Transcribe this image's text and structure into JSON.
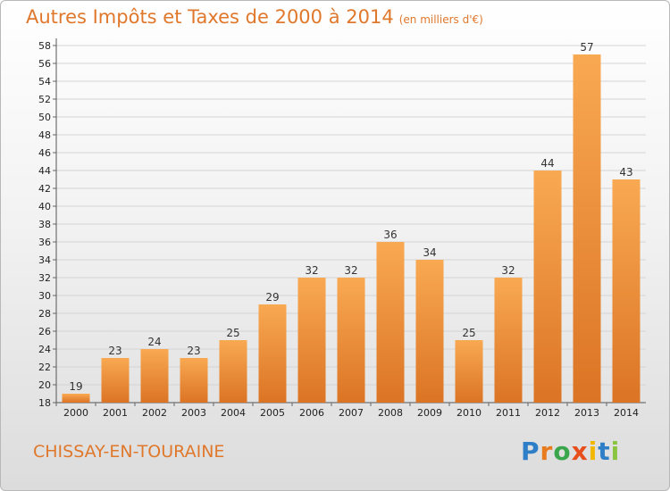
{
  "header": {
    "title": "Autres Impôts et Taxes de 2000 à 2014",
    "unit": "(en milliers d'€)"
  },
  "footer": {
    "commune": "CHISSAY-EN-TOURAINE",
    "logo": [
      "P",
      "r",
      "o",
      "x",
      "i",
      "t",
      "i"
    ]
  },
  "colors": {
    "accent": "#e0782c",
    "bar_light": "#f9a952",
    "bar_dark": "#db7424",
    "logo": [
      "#2f7fc8",
      "#e87b1e",
      "#3aa64b",
      "#e84e1b",
      "#f2b800",
      "#2f7fc8",
      "#8bc43f"
    ]
  },
  "chart_data": {
    "type": "bar",
    "title": "Autres Impôts et Taxes de 2000 à 2014",
    "subtitle": "(en milliers d'€)",
    "xlabel": "",
    "ylabel": "",
    "categories": [
      "2000",
      "2001",
      "2002",
      "2003",
      "2004",
      "2005",
      "2006",
      "2007",
      "2008",
      "2009",
      "2010",
      "2011",
      "2012",
      "2013",
      "2014"
    ],
    "values": [
      19,
      23,
      24,
      23,
      25,
      29,
      32,
      32,
      36,
      34,
      25,
      32,
      44,
      57,
      43
    ],
    "ylim": [
      18,
      58
    ],
    "yticks": [
      18,
      20,
      22,
      24,
      26,
      28,
      30,
      32,
      34,
      36,
      38,
      40,
      42,
      44,
      46,
      48,
      50,
      52,
      54,
      56,
      58
    ],
    "grid": true,
    "legend": "none"
  }
}
